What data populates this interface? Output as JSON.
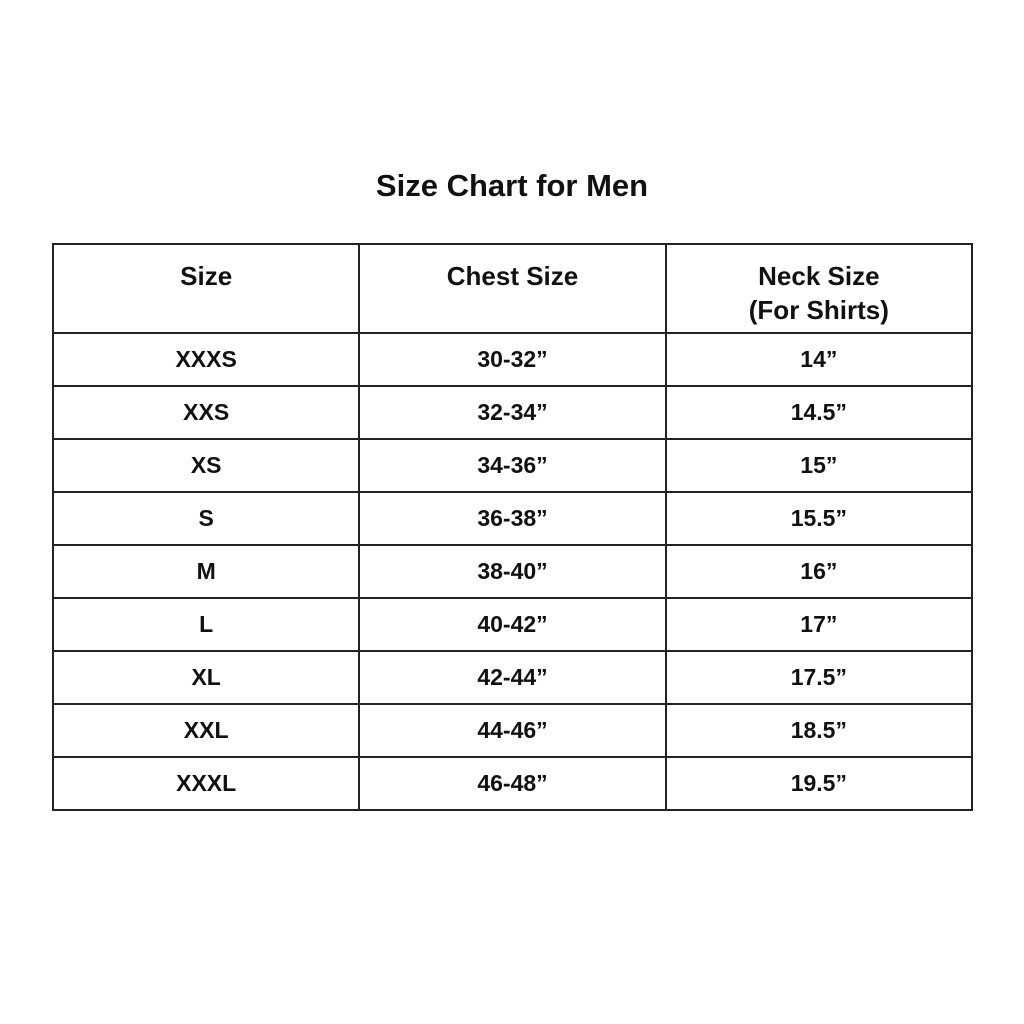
{
  "title": "Size Chart for Men",
  "columns": [
    {
      "label": "Size"
    },
    {
      "label": "Chest Size"
    },
    {
      "label": "Neck Size",
      "sublabel": "(For Shirts)"
    }
  ],
  "rows": [
    [
      "XXXS",
      "30-32”",
      "14”"
    ],
    [
      "XXS",
      "32-34”",
      "14.5”"
    ],
    [
      "XS",
      "34-36”",
      "15”"
    ],
    [
      "S",
      "36-38”",
      "15.5”"
    ],
    [
      "M",
      "38-40”",
      "16”"
    ],
    [
      "L",
      "40-42”",
      "17”"
    ],
    [
      "XL",
      "42-44”",
      "17.5”"
    ],
    [
      "XXL",
      "44-46”",
      "18.5”"
    ],
    [
      "XXXL",
      "46-48”",
      "19.5”"
    ]
  ]
}
